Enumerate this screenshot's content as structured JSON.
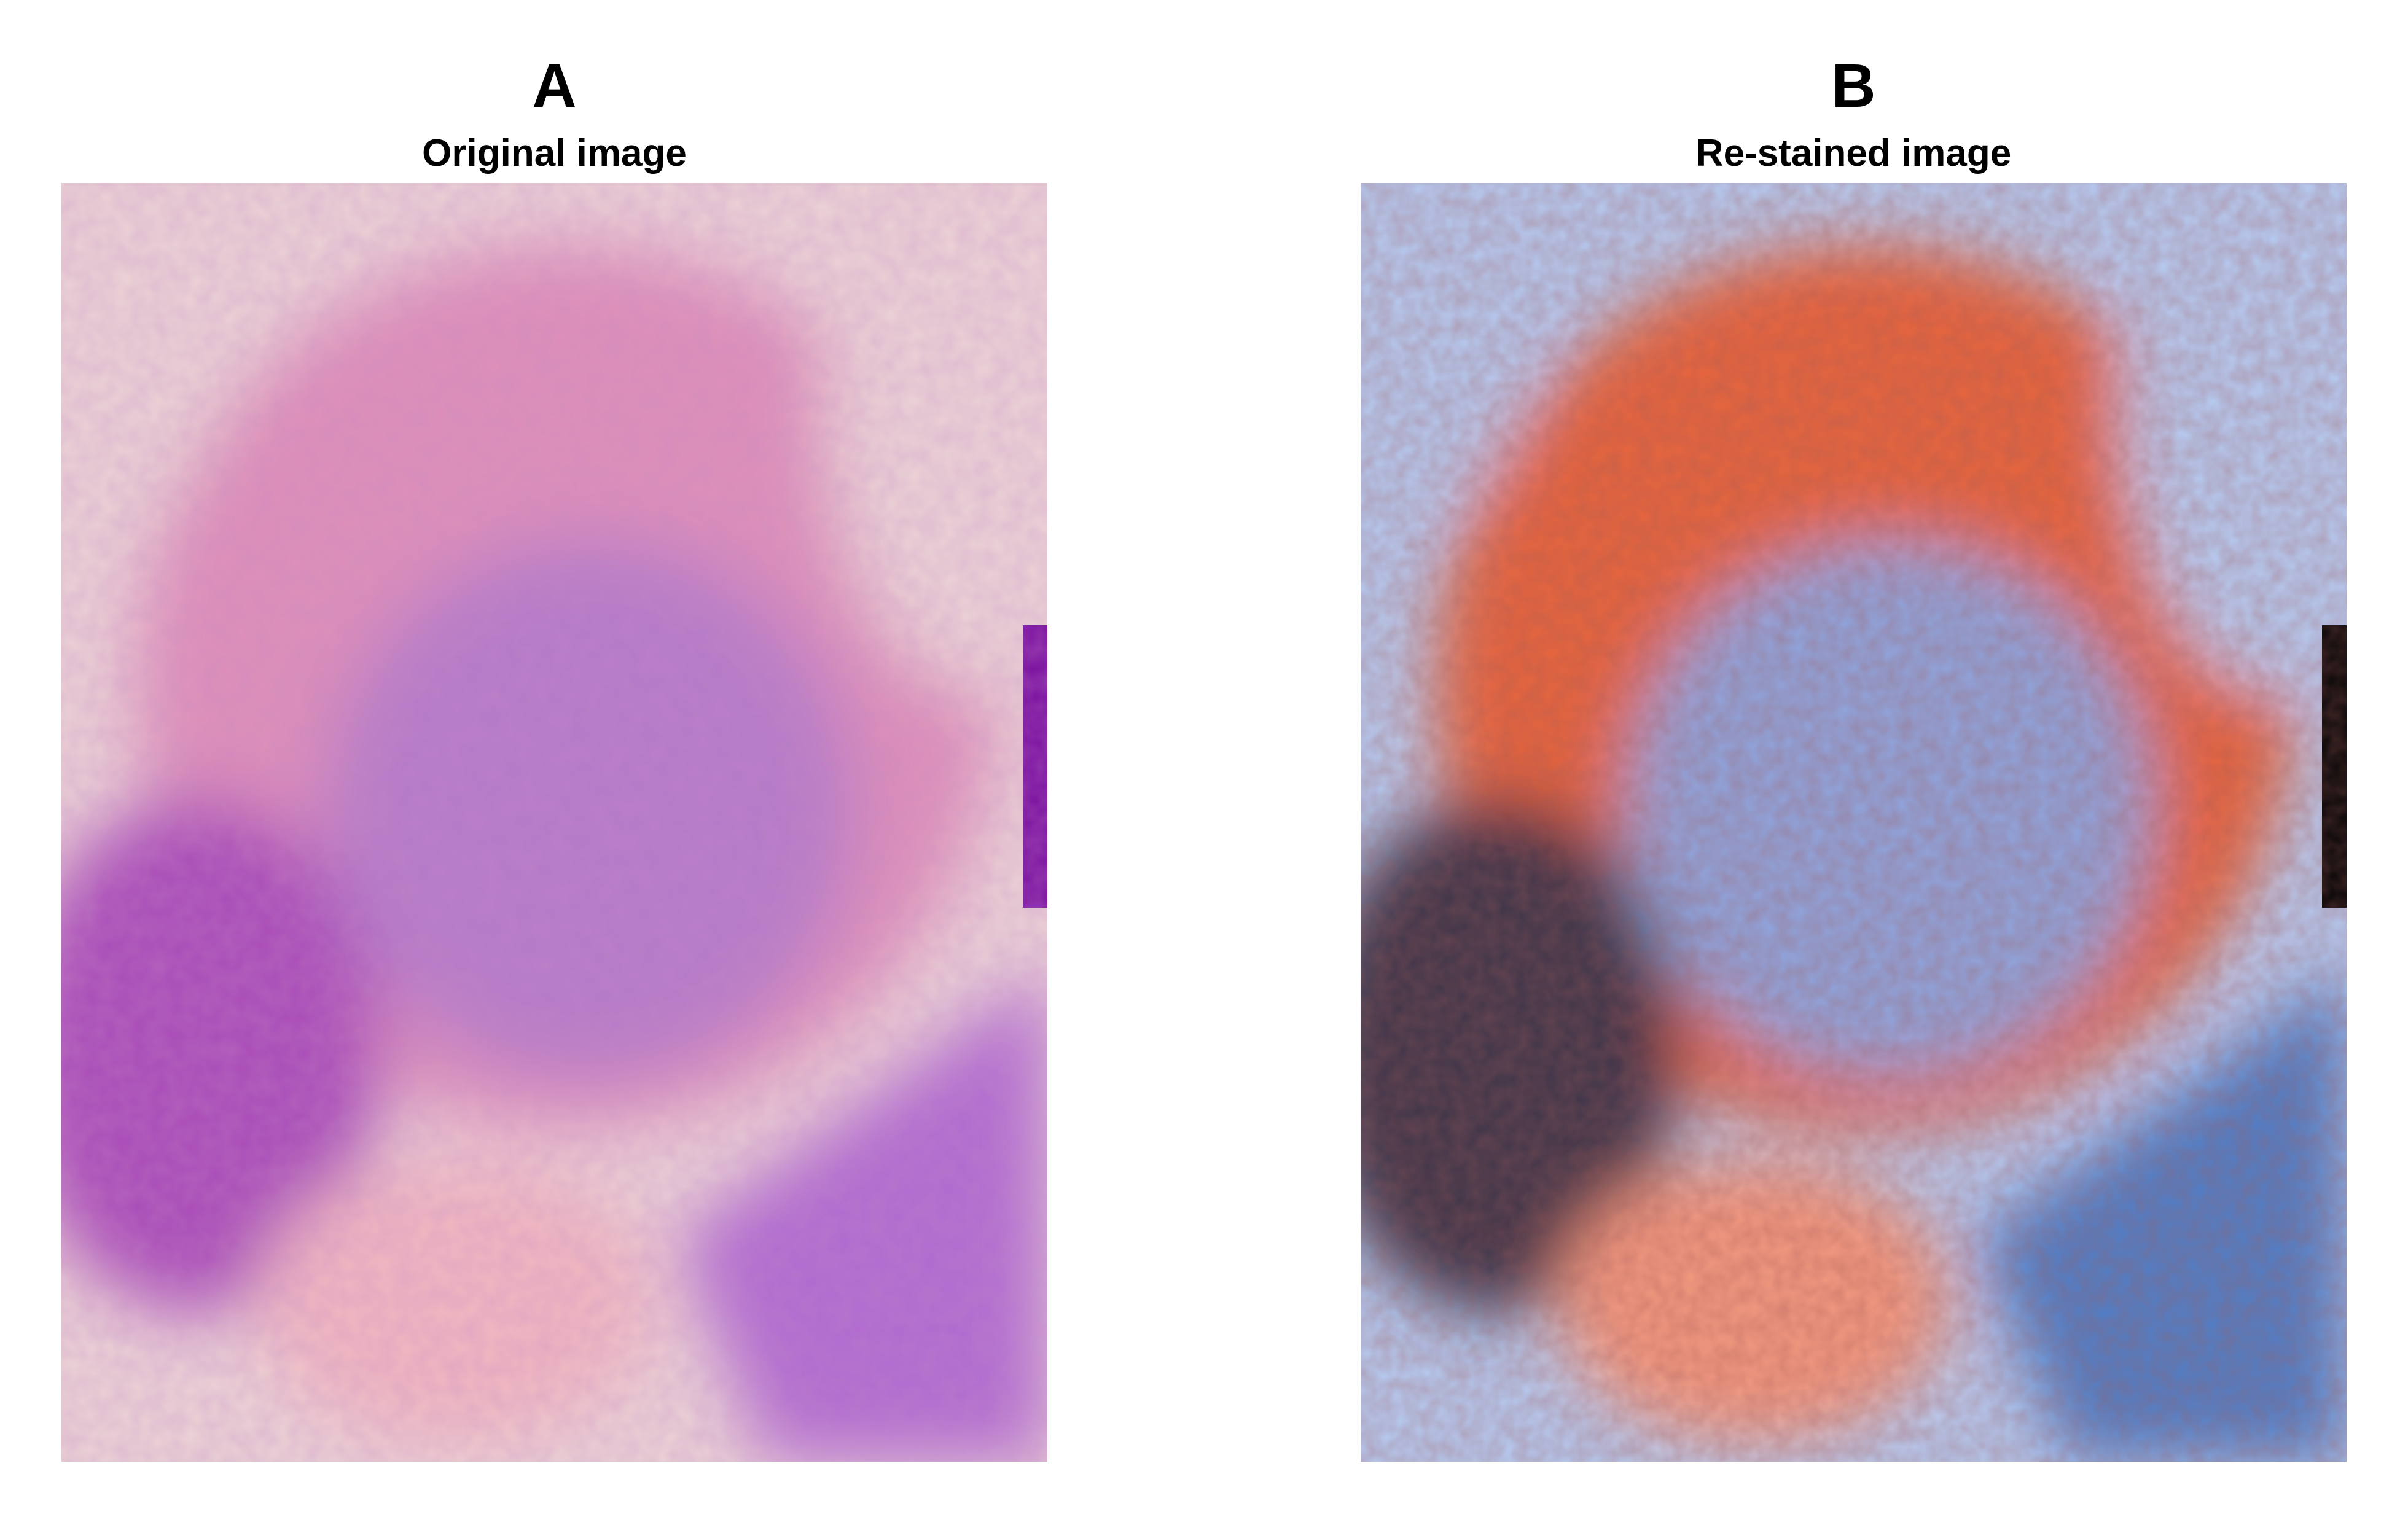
{
  "panels": [
    {
      "letter": "A",
      "title": "Original image",
      "colors": {
        "background": "#ecd4d6",
        "cytoplasm": "#de8fb8",
        "nucleus": "#b57ac8",
        "left_cell": "#a94cb8",
        "right_cell": "#b06bd0",
        "bottom_blob": "#f2b8c0",
        "edge_dark": "#7a10a0"
      }
    },
    {
      "letter": "B",
      "title": "Re-stained image",
      "colors": {
        "background": "#b6cdf5",
        "cytoplasm": "#e8653e",
        "nucleus": "#8fa6e0",
        "left_cell": "#3d3448",
        "right_cell": "#4f7fc9",
        "bottom_blob": "#f59a80",
        "edge_dark": "#050505"
      }
    }
  ]
}
